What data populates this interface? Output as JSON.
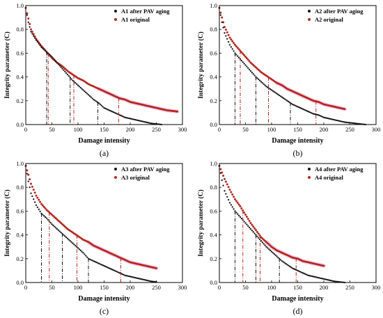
{
  "figure": {
    "colors": {
      "aged": "#111111",
      "original": "#b5261f",
      "highlight": "#f3c6ea"
    },
    "panels": [
      {
        "id": "a",
        "caption": "(a)",
        "chart_data": {
          "type": "scatter",
          "xlabel": "Damage intensity",
          "ylabel": "Integrity parameter (C)",
          "xlim": [
            0,
            300
          ],
          "ylim": [
            0,
            1.0
          ],
          "xticks": [
            "0",
            "50",
            "100",
            "150",
            "200",
            "250",
            "300"
          ],
          "yticks": [
            "0.0",
            "0.2",
            "0.4",
            "0.6",
            "0.8",
            "1.0"
          ],
          "legend_position": "top-right",
          "grid": false,
          "series": [
            {
              "name": "A1 after PAV aging",
              "x": [
                0,
                5,
                10,
                20,
                30,
                40,
                50,
                60,
                70,
                80,
                90,
                100,
                110,
                120,
                130,
                140,
                150,
                160,
                170,
                180,
                190,
                200,
                210,
                220,
                230,
                240,
                250,
                260
              ],
              "y": [
                0.98,
                0.86,
                0.78,
                0.71,
                0.65,
                0.61,
                0.57,
                0.52,
                0.47,
                0.42,
                0.37,
                0.33,
                0.29,
                0.25,
                0.21,
                0.18,
                0.14,
                0.12,
                0.1,
                0.08,
                0.06,
                0.05,
                0.04,
                0.03,
                0.02,
                0.01,
                0.005,
                0.0
              ]
            },
            {
              "name": "A1 original",
              "x": [
                0,
                10,
                20,
                30,
                40,
                50,
                60,
                70,
                80,
                90,
                100,
                110,
                120,
                130,
                140,
                150,
                160,
                170,
                180,
                190,
                200,
                210,
                220,
                230,
                240,
                250,
                260,
                270,
                280,
                290
              ],
              "y": [
                0.98,
                0.8,
                0.72,
                0.66,
                0.61,
                0.56,
                0.52,
                0.49,
                0.45,
                0.42,
                0.39,
                0.37,
                0.34,
                0.32,
                0.3,
                0.28,
                0.26,
                0.24,
                0.22,
                0.21,
                0.19,
                0.18,
                0.17,
                0.16,
                0.15,
                0.14,
                0.13,
                0.12,
                0.115,
                0.11
              ]
            }
          ],
          "dropline_series": [
            {
              "name": "A1 after PAV aging",
              "x": [
                40,
                85,
                138
              ]
            },
            {
              "name": "A1 original",
              "x": [
                43,
                92,
                178
              ]
            }
          ]
        }
      },
      {
        "id": "b",
        "caption": "(b)",
        "chart_data": {
          "type": "scatter",
          "xlabel": "Damage intensity",
          "ylabel": "Integrity parameter (C)",
          "xlim": [
            0,
            300
          ],
          "ylim": [
            0,
            1.0
          ],
          "xticks": [
            "0",
            "50",
            "100",
            "150",
            "200",
            "250",
            "300"
          ],
          "yticks": [
            "0.0",
            "0.2",
            "0.4",
            "0.6",
            "0.8",
            "1.0"
          ],
          "legend_position": "top-right",
          "grid": false,
          "series": [
            {
              "name": "A2 after PAV aging",
              "x": [
                0,
                5,
                10,
                20,
                30,
                40,
                50,
                60,
                70,
                80,
                90,
                100,
                110,
                120,
                130,
                140,
                150,
                160,
                170,
                180,
                190,
                200,
                210,
                220,
                230,
                240,
                250,
                260,
                270,
                280
              ],
              "y": [
                0.98,
                0.86,
                0.77,
                0.67,
                0.6,
                0.55,
                0.5,
                0.45,
                0.4,
                0.36,
                0.32,
                0.29,
                0.26,
                0.23,
                0.2,
                0.17,
                0.15,
                0.13,
                0.11,
                0.09,
                0.08,
                0.06,
                0.05,
                0.04,
                0.03,
                0.02,
                0.015,
                0.01,
                0.005,
                0.0
              ]
            },
            {
              "name": "A2 original",
              "x": [
                0,
                10,
                20,
                30,
                40,
                50,
                60,
                70,
                80,
                90,
                100,
                110,
                120,
                130,
                140,
                150,
                160,
                170,
                180,
                190,
                200,
                210,
                220,
                230,
                240
              ],
              "y": [
                0.98,
                0.82,
                0.73,
                0.67,
                0.62,
                0.57,
                0.52,
                0.48,
                0.44,
                0.41,
                0.38,
                0.35,
                0.33,
                0.3,
                0.28,
                0.26,
                0.24,
                0.22,
                0.2,
                0.19,
                0.17,
                0.16,
                0.15,
                0.14,
                0.13
              ]
            }
          ],
          "dropline_series": [
            {
              "name": "A2 after PAV aging",
              "x": [
                30,
                70,
                136
              ]
            },
            {
              "name": "A2 original",
              "x": [
                40,
                94,
                185
              ]
            }
          ]
        }
      },
      {
        "id": "c",
        "caption": "(c)",
        "chart_data": {
          "type": "scatter",
          "xlabel": "Damage intensity",
          "ylabel": "Integrity parameter (C)",
          "xlim": [
            0,
            300
          ],
          "ylim": [
            0,
            1.0
          ],
          "xticks": [
            "0",
            "50",
            "100",
            "150",
            "200",
            "250",
            "300"
          ],
          "yticks": [
            "0.0",
            "0.2",
            "0.4",
            "0.6",
            "0.8",
            "1.0"
          ],
          "legend_position": "top-right",
          "grid": false,
          "series": [
            {
              "name": "A3 after PAV aging",
              "x": [
                0,
                5,
                10,
                20,
                30,
                40,
                50,
                60,
                70,
                80,
                90,
                100,
                110,
                120,
                130,
                140,
                150,
                160,
                170,
                180,
                190,
                200,
                210,
                220,
                230,
                240,
                250
              ],
              "y": [
                0.98,
                0.85,
                0.75,
                0.65,
                0.58,
                0.54,
                0.49,
                0.45,
                0.41,
                0.37,
                0.33,
                0.29,
                0.25,
                0.2,
                0.18,
                0.16,
                0.14,
                0.12,
                0.1,
                0.08,
                0.06,
                0.05,
                0.04,
                0.03,
                0.02,
                0.01,
                0.005
              ]
            },
            {
              "name": "A3 original",
              "x": [
                0,
                10,
                20,
                30,
                40,
                50,
                60,
                70,
                80,
                90,
                100,
                110,
                120,
                130,
                140,
                150,
                160,
                170,
                180,
                190,
                200,
                210,
                220,
                230,
                240,
                250
              ],
              "y": [
                0.98,
                0.83,
                0.73,
                0.66,
                0.61,
                0.57,
                0.53,
                0.49,
                0.45,
                0.42,
                0.39,
                0.36,
                0.34,
                0.31,
                0.29,
                0.27,
                0.25,
                0.23,
                0.21,
                0.19,
                0.17,
                0.16,
                0.15,
                0.14,
                0.13,
                0.12
              ]
            }
          ],
          "dropline_series": [
            {
              "name": "A3 after PAV aging",
              "x": [
                30,
                70,
                120
              ]
            },
            {
              "name": "A3 original",
              "x": [
                45,
                98,
                182
              ]
            }
          ]
        }
      },
      {
        "id": "d",
        "caption": "(d)",
        "chart_data": {
          "type": "scatter",
          "xlabel": "Damage intensity",
          "ylabel": "Integrity parameter (C)",
          "xlim": [
            0,
            300
          ],
          "ylim": [
            0,
            1.0
          ],
          "xticks": [
            "0",
            "50",
            "100",
            "150",
            "200",
            "250",
            "300"
          ],
          "yticks": [
            "0.0",
            "0.2",
            "0.4",
            "0.6",
            "0.8",
            "1.0"
          ],
          "legend_position": "top-right",
          "grid": false,
          "series": [
            {
              "name": "A4 after PAV aging",
              "x": [
                0,
                5,
                10,
                20,
                30,
                40,
                50,
                60,
                70,
                80,
                90,
                100,
                110,
                120,
                130,
                140,
                150,
                160,
                170,
                180,
                190,
                200,
                210,
                220,
                230,
                240
              ],
              "y": [
                0.98,
                0.86,
                0.77,
                0.67,
                0.6,
                0.55,
                0.5,
                0.45,
                0.4,
                0.35,
                0.3,
                0.26,
                0.22,
                0.18,
                0.15,
                0.12,
                0.1,
                0.08,
                0.06,
                0.05,
                0.04,
                0.03,
                0.02,
                0.01,
                0.005,
                0.0
              ]
            },
            {
              "name": "A4 original",
              "x": [
                0,
                10,
                20,
                30,
                40,
                50,
                60,
                70,
                80,
                90,
                100,
                110,
                120,
                130,
                140,
                150,
                160,
                170,
                180,
                190,
                200
              ],
              "y": [
                0.98,
                0.87,
                0.78,
                0.7,
                0.64,
                0.57,
                0.5,
                0.44,
                0.38,
                0.34,
                0.3,
                0.27,
                0.25,
                0.23,
                0.21,
                0.2,
                0.18,
                0.17,
                0.16,
                0.15,
                0.14
              ]
            }
          ],
          "dropline_series": [
            {
              "name": "A4 after PAV aging",
              "x": [
                30,
                70,
                115
              ]
            },
            {
              "name": "A4 original",
              "x": [
                45,
                78,
                147
              ]
            }
          ]
        }
      }
    ]
  }
}
